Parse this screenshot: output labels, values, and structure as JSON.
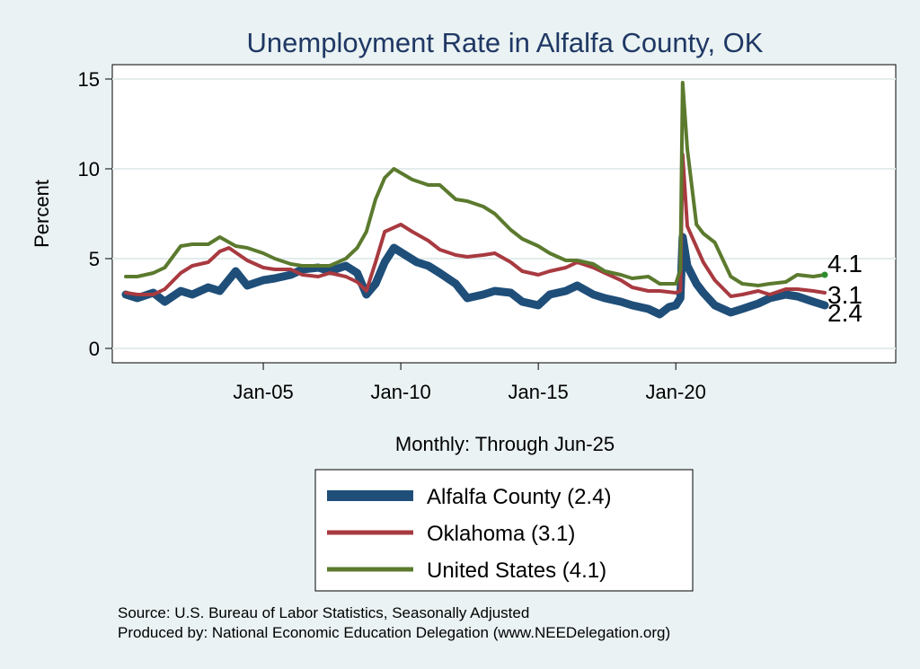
{
  "chart_data": {
    "type": "line",
    "title": "Unemployment Rate in Alfalfa  County, OK",
    "ylabel": "Percent",
    "xlabel": "Monthly: Through Jun-25",
    "x_start": "2000-01",
    "x_end": "2025-06",
    "x_ticks": [
      {
        "label": "Jan-05",
        "date": "2005-01"
      },
      {
        "label": "Jan-10",
        "date": "2010-01"
      },
      {
        "label": "Jan-15",
        "date": "2015-01"
      },
      {
        "label": "Jan-20",
        "date": "2020-01"
      }
    ],
    "y_ticks": [
      0,
      5,
      10,
      15
    ],
    "ylim": [
      -0.8,
      15.8
    ],
    "grid": true,
    "legend_position": "bottom",
    "series": [
      {
        "name": "Alfalfa  County (2.4)",
        "color": "#1f4e79",
        "end_label": "2.4",
        "points": [
          [
            "2000-01",
            3.0
          ],
          [
            "2000-06",
            2.8
          ],
          [
            "2001-01",
            3.1
          ],
          [
            "2001-06",
            2.6
          ],
          [
            "2002-01",
            3.2
          ],
          [
            "2002-06",
            3.0
          ],
          [
            "2003-01",
            3.4
          ],
          [
            "2003-06",
            3.2
          ],
          [
            "2004-01",
            4.3
          ],
          [
            "2004-06",
            3.5
          ],
          [
            "2005-01",
            3.8
          ],
          [
            "2005-06",
            3.9
          ],
          [
            "2006-01",
            4.1
          ],
          [
            "2006-06",
            4.4
          ],
          [
            "2007-01",
            4.5
          ],
          [
            "2007-06",
            4.3
          ],
          [
            "2008-01",
            4.6
          ],
          [
            "2008-06",
            4.2
          ],
          [
            "2008-10",
            3.0
          ],
          [
            "2009-02",
            3.6
          ],
          [
            "2009-06",
            4.8
          ],
          [
            "2009-10",
            5.6
          ],
          [
            "2010-03",
            5.2
          ],
          [
            "2010-08",
            4.8
          ],
          [
            "2011-01",
            4.6
          ],
          [
            "2011-06",
            4.2
          ],
          [
            "2012-01",
            3.6
          ],
          [
            "2012-06",
            2.8
          ],
          [
            "2013-01",
            3.0
          ],
          [
            "2013-06",
            3.2
          ],
          [
            "2014-01",
            3.1
          ],
          [
            "2014-06",
            2.6
          ],
          [
            "2015-01",
            2.4
          ],
          [
            "2015-06",
            3.0
          ],
          [
            "2016-01",
            3.2
          ],
          [
            "2016-06",
            3.5
          ],
          [
            "2017-01",
            3.0
          ],
          [
            "2017-06",
            2.8
          ],
          [
            "2018-01",
            2.6
          ],
          [
            "2018-06",
            2.4
          ],
          [
            "2019-01",
            2.2
          ],
          [
            "2019-06",
            1.9
          ],
          [
            "2019-10",
            2.3
          ],
          [
            "2020-01",
            2.4
          ],
          [
            "2020-03",
            2.8
          ],
          [
            "2020-04",
            6.2
          ],
          [
            "2020-06",
            4.6
          ],
          [
            "2020-10",
            3.6
          ],
          [
            "2021-01",
            3.1
          ],
          [
            "2021-06",
            2.4
          ],
          [
            "2022-01",
            2.0
          ],
          [
            "2022-06",
            2.2
          ],
          [
            "2023-01",
            2.5
          ],
          [
            "2023-06",
            2.8
          ],
          [
            "2024-01",
            3.0
          ],
          [
            "2024-06",
            2.9
          ],
          [
            "2025-01",
            2.6
          ],
          [
            "2025-06",
            2.4
          ]
        ]
      },
      {
        "name": "Oklahoma (3.1)",
        "color": "#a83a40",
        "end_label": "3.1",
        "points": [
          [
            "2000-01",
            3.1
          ],
          [
            "2000-06",
            3.0
          ],
          [
            "2001-01",
            3.0
          ],
          [
            "2001-06",
            3.3
          ],
          [
            "2002-01",
            4.2
          ],
          [
            "2002-06",
            4.6
          ],
          [
            "2003-01",
            4.8
          ],
          [
            "2003-06",
            5.4
          ],
          [
            "2003-10",
            5.6
          ],
          [
            "2004-06",
            4.9
          ],
          [
            "2005-01",
            4.5
          ],
          [
            "2005-06",
            4.4
          ],
          [
            "2006-01",
            4.4
          ],
          [
            "2006-06",
            4.1
          ],
          [
            "2007-01",
            4.0
          ],
          [
            "2007-06",
            4.2
          ],
          [
            "2008-01",
            4.0
          ],
          [
            "2008-06",
            3.7
          ],
          [
            "2008-10",
            3.2
          ],
          [
            "2009-02",
            4.8
          ],
          [
            "2009-06",
            6.5
          ],
          [
            "2010-01",
            6.9
          ],
          [
            "2010-06",
            6.5
          ],
          [
            "2011-01",
            6.0
          ],
          [
            "2011-06",
            5.5
          ],
          [
            "2012-01",
            5.2
          ],
          [
            "2012-06",
            5.1
          ],
          [
            "2013-01",
            5.2
          ],
          [
            "2013-06",
            5.3
          ],
          [
            "2014-01",
            4.8
          ],
          [
            "2014-06",
            4.3
          ],
          [
            "2015-01",
            4.1
          ],
          [
            "2015-06",
            4.3
          ],
          [
            "2016-01",
            4.5
          ],
          [
            "2016-06",
            4.8
          ],
          [
            "2017-01",
            4.5
          ],
          [
            "2017-06",
            4.2
          ],
          [
            "2018-01",
            3.8
          ],
          [
            "2018-06",
            3.4
          ],
          [
            "2019-01",
            3.2
          ],
          [
            "2019-06",
            3.2
          ],
          [
            "2020-01",
            3.1
          ],
          [
            "2020-03",
            3.2
          ],
          [
            "2020-04",
            10.8
          ],
          [
            "2020-06",
            6.8
          ],
          [
            "2021-01",
            4.8
          ],
          [
            "2021-06",
            3.8
          ],
          [
            "2022-01",
            2.9
          ],
          [
            "2022-06",
            3.0
          ],
          [
            "2023-01",
            3.2
          ],
          [
            "2023-06",
            3.0
          ],
          [
            "2024-01",
            3.3
          ],
          [
            "2024-06",
            3.3
          ],
          [
            "2025-01",
            3.2
          ],
          [
            "2025-06",
            3.1
          ]
        ]
      },
      {
        "name": "United States (4.1)",
        "color": "#5b7a2e",
        "end_label": "4.1",
        "points": [
          [
            "2000-01",
            4.0
          ],
          [
            "2000-06",
            4.0
          ],
          [
            "2001-01",
            4.2
          ],
          [
            "2001-06",
            4.5
          ],
          [
            "2002-01",
            5.7
          ],
          [
            "2002-06",
            5.8
          ],
          [
            "2003-01",
            5.8
          ],
          [
            "2003-06",
            6.2
          ],
          [
            "2004-01",
            5.7
          ],
          [
            "2004-06",
            5.6
          ],
          [
            "2005-01",
            5.3
          ],
          [
            "2005-06",
            5.0
          ],
          [
            "2006-01",
            4.7
          ],
          [
            "2006-06",
            4.6
          ],
          [
            "2007-01",
            4.6
          ],
          [
            "2007-06",
            4.6
          ],
          [
            "2008-01",
            5.0
          ],
          [
            "2008-06",
            5.6
          ],
          [
            "2008-10",
            6.5
          ],
          [
            "2009-02",
            8.3
          ],
          [
            "2009-06",
            9.5
          ],
          [
            "2009-10",
            10.0
          ],
          [
            "2010-06",
            9.4
          ],
          [
            "2011-01",
            9.1
          ],
          [
            "2011-06",
            9.1
          ],
          [
            "2012-01",
            8.3
          ],
          [
            "2012-06",
            8.2
          ],
          [
            "2013-01",
            7.9
          ],
          [
            "2013-06",
            7.5
          ],
          [
            "2014-01",
            6.6
          ],
          [
            "2014-06",
            6.1
          ],
          [
            "2015-01",
            5.7
          ],
          [
            "2015-06",
            5.3
          ],
          [
            "2016-01",
            4.9
          ],
          [
            "2016-06",
            4.9
          ],
          [
            "2017-01",
            4.7
          ],
          [
            "2017-06",
            4.3
          ],
          [
            "2018-01",
            4.1
          ],
          [
            "2018-06",
            3.9
          ],
          [
            "2019-01",
            4.0
          ],
          [
            "2019-06",
            3.6
          ],
          [
            "2020-01",
            3.6
          ],
          [
            "2020-03",
            4.4
          ],
          [
            "2020-04",
            14.8
          ],
          [
            "2020-06",
            11.1
          ],
          [
            "2020-10",
            6.9
          ],
          [
            "2021-01",
            6.4
          ],
          [
            "2021-06",
            5.9
          ],
          [
            "2022-01",
            4.0
          ],
          [
            "2022-06",
            3.6
          ],
          [
            "2023-01",
            3.5
          ],
          [
            "2023-06",
            3.6
          ],
          [
            "2024-01",
            3.7
          ],
          [
            "2024-06",
            4.1
          ],
          [
            "2025-01",
            4.0
          ],
          [
            "2025-06",
            4.1
          ]
        ]
      }
    ],
    "source_lines": [
      "Source: U.S. Bureau of Labor Statistics, Seasonally Adjusted",
      "Produced by: National Economic Education Delegation (www.NEEDelegation.org)"
    ]
  }
}
